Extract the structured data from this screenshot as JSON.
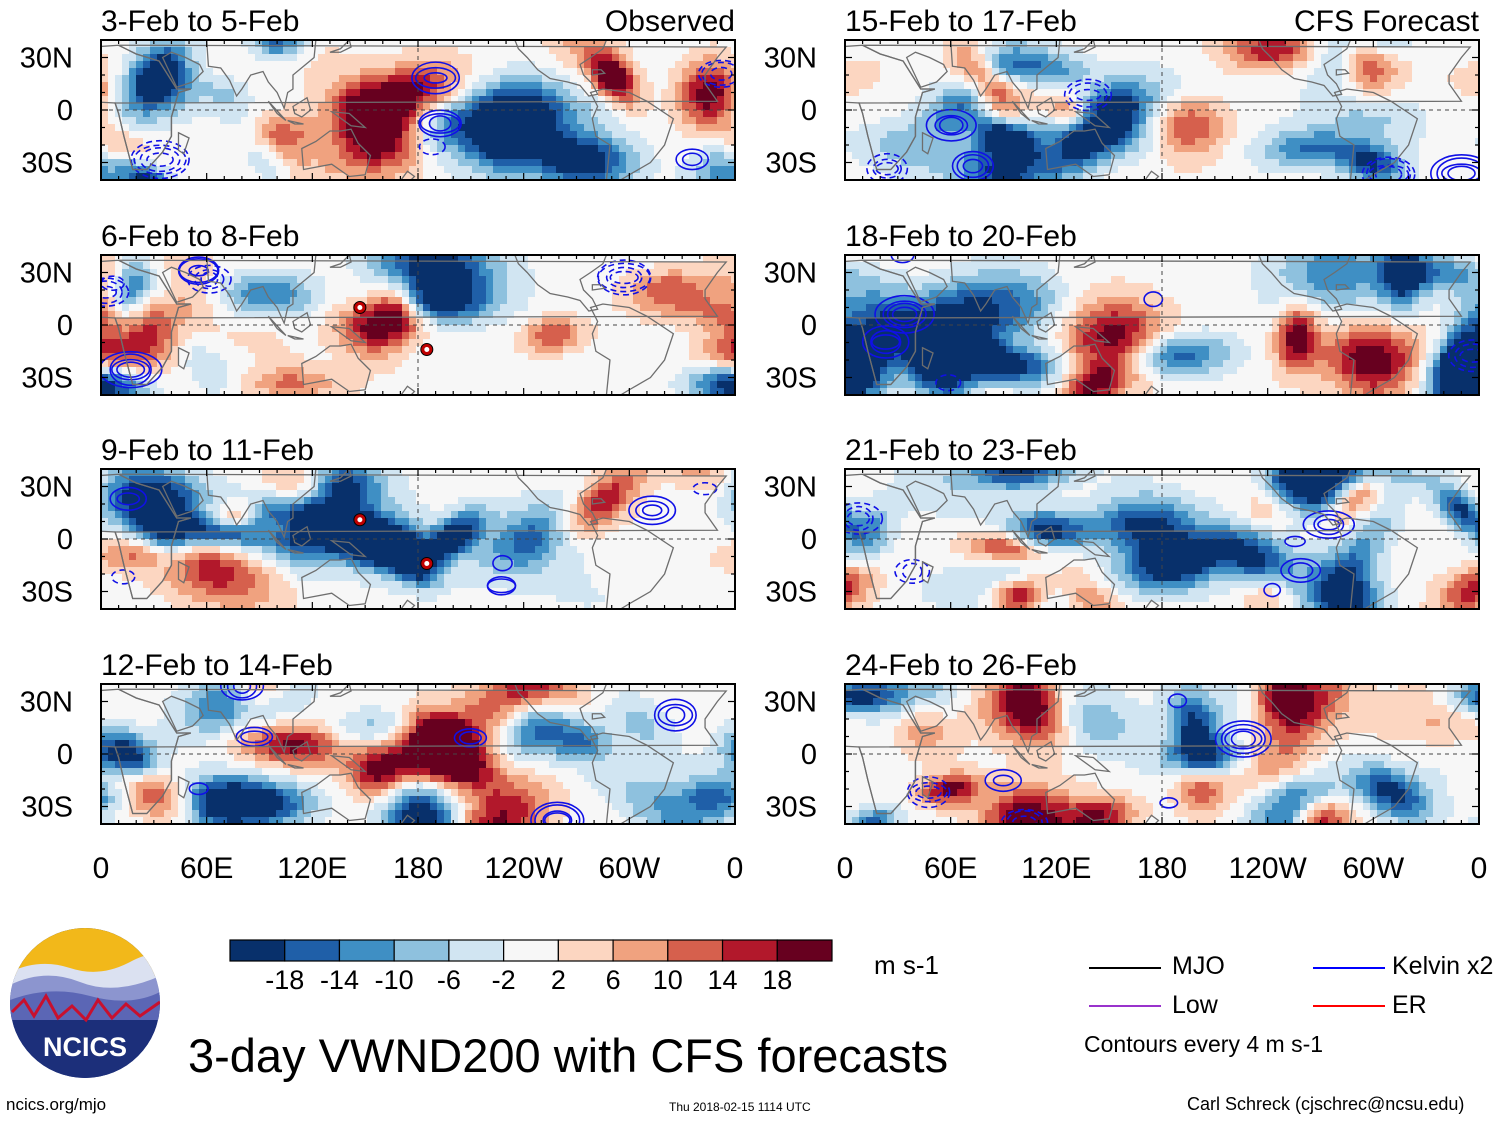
{
  "chart_data": {
    "type": "heatmap",
    "title": "3-day VWND200 with CFS forecasts",
    "variable": "VWND200",
    "units": "m s-1",
    "x_ticks": [
      "0",
      "60E",
      "120E",
      "180",
      "120W",
      "60W",
      "0"
    ],
    "y_ticks": [
      "30N",
      "0",
      "30S"
    ],
    "x_range_deg": [
      0,
      360
    ],
    "y_range_deg": [
      -40,
      40
    ],
    "columns": [
      "Observed",
      "CFS Forecast"
    ],
    "panels": [
      {
        "period": "3-Feb to 5-Feb",
        "source": "Observed",
        "seed": 11,
        "tc_markers": []
      },
      {
        "period": "6-Feb to 8-Feb",
        "source": "Observed",
        "seed": 23,
        "tc_markers": [
          {
            "lon": 147,
            "lat": 10
          },
          {
            "lon": 185,
            "lat": -14
          }
        ]
      },
      {
        "period": "9-Feb to 11-Feb",
        "source": "Observed",
        "seed": 37,
        "tc_markers": [
          {
            "lon": 147,
            "lat": 11
          },
          {
            "lon": 185,
            "lat": -14
          }
        ]
      },
      {
        "period": "12-Feb to 14-Feb",
        "source": "Observed",
        "seed": 41,
        "tc_markers": []
      },
      {
        "period": "15-Feb to 17-Feb",
        "source": "CFS Forecast",
        "seed": 53,
        "tc_markers": []
      },
      {
        "period": "18-Feb to 20-Feb",
        "source": "CFS Forecast",
        "seed": 67,
        "tc_markers": []
      },
      {
        "period": "21-Feb to 23-Feb",
        "source": "CFS Forecast",
        "seed": 79,
        "tc_markers": []
      },
      {
        "period": "24-Feb to 26-Feb",
        "source": "CFS Forecast",
        "seed": 83,
        "tc_markers": []
      }
    ],
    "colorbar": {
      "labels": [
        "-18",
        "-14",
        "-10",
        "-6",
        "-2",
        "2",
        "6",
        "10",
        "14",
        "18"
      ],
      "colors": [
        "#08306b",
        "#1f5fa8",
        "#3f8fc4",
        "#8ec1de",
        "#d1e5f2",
        "#f7f7f7",
        "#fcd6c1",
        "#f0a27f",
        "#d6604d",
        "#b2182b",
        "#67001f"
      ]
    },
    "legend": [
      {
        "label": "MJO",
        "color": "#000000"
      },
      {
        "label": "Kelvin x2",
        "color": "#0000ff"
      },
      {
        "label": "Low",
        "color": "#9932cc"
      },
      {
        "label": "ER",
        "color": "#ff0000"
      }
    ],
    "contour_note": "Contours every 4 m s-1"
  },
  "footer": {
    "logo_text": "NCICS",
    "site": "ncics.org/mjo",
    "timestamp": "Thu 2018-02-15 1114 UTC",
    "author": "Carl Schreck (cjschrec@ncsu.edu)"
  }
}
